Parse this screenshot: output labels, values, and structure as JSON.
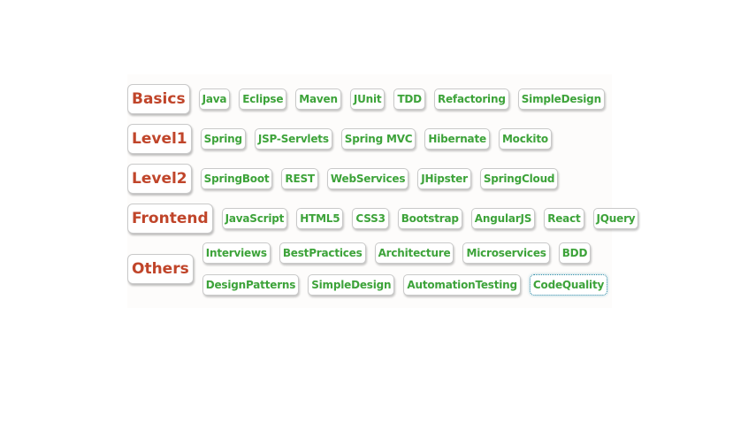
{
  "rows": [
    {
      "category": "Basics",
      "tags": [
        "Java",
        "Eclipse",
        "Maven",
        "JUnit",
        "TDD",
        "Refactoring",
        "SimpleDesign"
      ]
    },
    {
      "category": "Level1",
      "tags": [
        "Spring",
        "JSP-Servlets",
        "Spring MVC",
        "Hibernate",
        "Mockito"
      ]
    },
    {
      "category": "Level2",
      "tags": [
        "SpringBoot",
        "REST",
        "WebServices",
        "JHipster",
        "SpringCloud"
      ]
    },
    {
      "category": "Frontend",
      "tags": [
        "JavaScript",
        "HTML5",
        "CSS3",
        "Bootstrap",
        "AngularJS",
        "React",
        "JQuery"
      ]
    }
  ],
  "others": {
    "category": "Others",
    "line1": [
      "Interviews",
      "BestPractices",
      "Architecture",
      "Microservices",
      "BDD"
    ],
    "line2": [
      "DesignPatterns",
      "SimpleDesign",
      "AutomationTesting",
      "CodeQuality"
    ],
    "focused_tag": "CodeQuality"
  },
  "colors": {
    "category_text": "#c0452a",
    "tag_text": "#3da33a",
    "focus_outline": "#2a8aa6"
  }
}
